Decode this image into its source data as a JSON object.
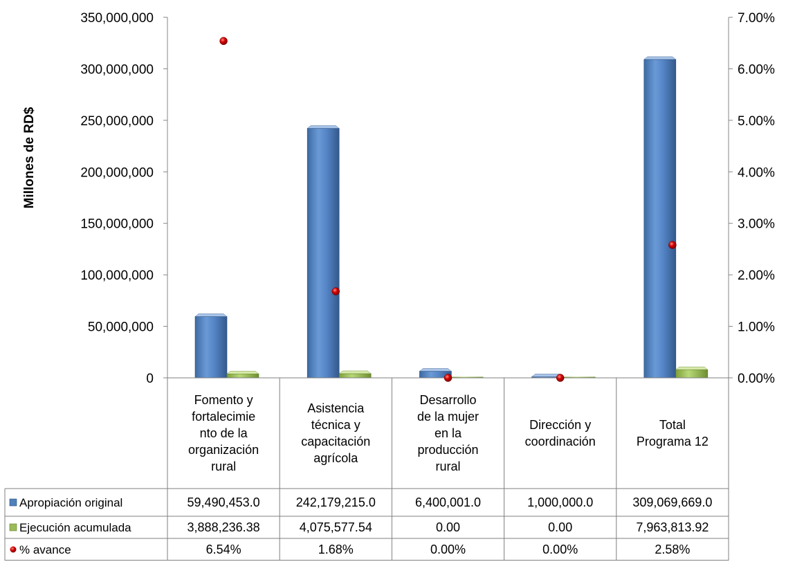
{
  "chart_data": {
    "type": "bar",
    "ylabel": "Millones de RD$",
    "categories": [
      "Fomento y fortalecimie nto de la organización rural",
      "Asistencia técnica y capacitación agrícola",
      "Desarrollo de la mujer en la producción rural",
      "Dirección y coordinación",
      "Total Programa 12"
    ],
    "category_lines": [
      [
        "Fomento y",
        "fortalecimie",
        "nto de la",
        "organización",
        "rural"
      ],
      [
        "Asistencia",
        "técnica y",
        "capacitación",
        "agrícola"
      ],
      [
        "Desarrollo",
        "de la mujer",
        "en la",
        "producción",
        "rural"
      ],
      [
        "Dirección y",
        "coordinación"
      ],
      [
        "Total",
        "Programa 12"
      ]
    ],
    "left_axis": {
      "ylim": [
        0,
        350000000
      ],
      "ticks": [
        0,
        50000000,
        100000000,
        150000000,
        200000000,
        250000000,
        300000000,
        350000000
      ],
      "tick_labels": [
        "0",
        "50,000,000",
        "100,000,000",
        "150,000,000",
        "200,000,000",
        "250,000,000",
        "300,000,000",
        "350,000,000"
      ]
    },
    "right_axis": {
      "ylim": [
        0,
        7
      ],
      "ticks": [
        0,
        1,
        2,
        3,
        4,
        5,
        6,
        7
      ],
      "tick_labels": [
        "0.00%",
        "1.00%",
        "2.00%",
        "3.00%",
        "4.00%",
        "5.00%",
        "6.00%",
        "7.00%"
      ]
    },
    "series": [
      {
        "name": "Apropiación  original",
        "kind": "bar",
        "axis": "left",
        "color": "#4f81bd",
        "values": [
          59490453.0,
          242179215.0,
          6400001.0,
          1000000.0,
          309069669.0
        ],
        "labels": [
          "59,490,453.0",
          "242,179,215.0",
          "6,400,001.0",
          "1,000,000.0",
          "309,069,669.0"
        ]
      },
      {
        "name": "Ejecución acumulada",
        "kind": "bar",
        "axis": "left",
        "color": "#9bbb59",
        "values": [
          3888236.38,
          4075577.54,
          0,
          0,
          7963813.92
        ],
        "labels": [
          "3,888,236.38",
          "4,075,577.54",
          "0.00",
          "0.00",
          "7,963,813.92"
        ]
      },
      {
        "name": "% avance",
        "kind": "scatter",
        "axis": "right",
        "color": "#c00000",
        "values": [
          6.54,
          1.68,
          0.0,
          0.0,
          2.58
        ],
        "labels": [
          "6.54%",
          "1.68%",
          "0.00%",
          "0.00%",
          "2.58%"
        ]
      }
    ],
    "grid": false,
    "legend": "data-table"
  }
}
